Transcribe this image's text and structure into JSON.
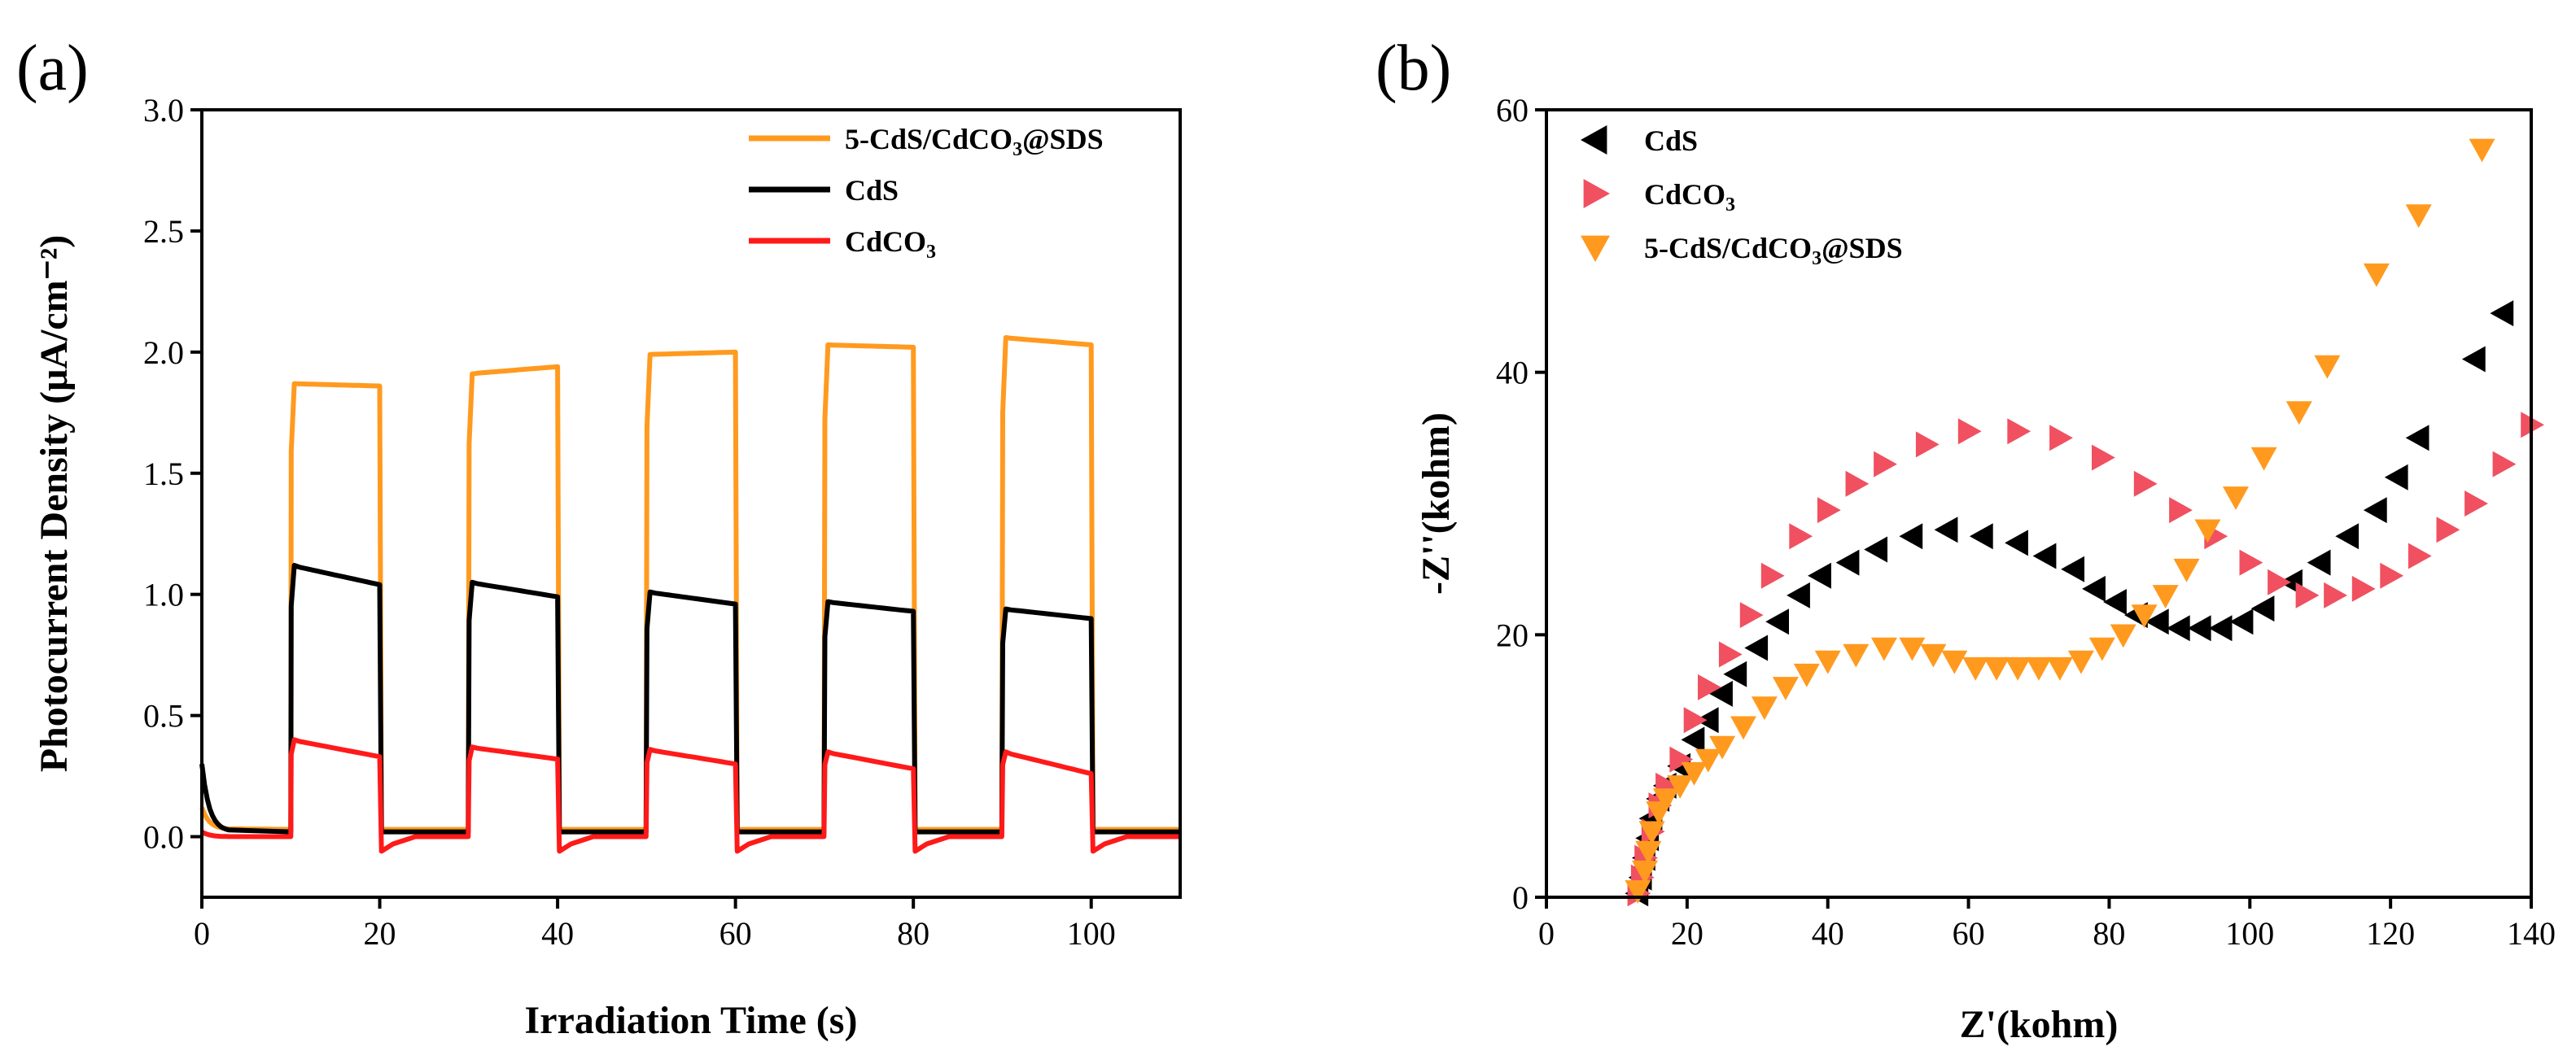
{
  "chart_data": [
    {
      "panel": "(a)",
      "type": "line",
      "title": "",
      "xlabel": "Irradiation Time (s)",
      "ylabel": "Photocurrent Density (μA/cm⁻²)",
      "xlim": [
        0,
        110
      ],
      "ylim": [
        -0.25,
        3.0
      ],
      "xticks": [
        0,
        20,
        40,
        60,
        80,
        100
      ],
      "xtick_labels": [
        "0",
        "20",
        "40",
        "60",
        "80",
        "100"
      ],
      "yticks": [
        0.0,
        0.5,
        1.0,
        1.5,
        2.0,
        2.5,
        3.0
      ],
      "ytick_labels": [
        "0.0",
        "0.5",
        "1.0",
        "1.5",
        "2.0",
        "2.5",
        "3.0"
      ],
      "light_on_intervals": [
        [
          10,
          20
        ],
        [
          30,
          40
        ],
        [
          50,
          60
        ],
        [
          70,
          80
        ],
        [
          90,
          100
        ]
      ],
      "legend_position": "top-right",
      "series": [
        {
          "name": "5-CdS/CdCO3@SDS",
          "label_main": "5-CdS/CdCO",
          "label_sub": "3",
          "label_tail": "@SDS",
          "color": "#ff9a1f",
          "baseline": 0.03,
          "start": 0.12,
          "on_peaks": [
            1.87,
            1.91,
            1.99,
            2.03,
            2.06
          ],
          "on_ends": [
            1.86,
            1.94,
            2.0,
            2.02,
            2.03
          ]
        },
        {
          "name": "CdS",
          "label_main": "CdS",
          "label_sub": "",
          "label_tail": "",
          "color": "#000000",
          "baseline": 0.02,
          "start": 0.3,
          "on_peaks": [
            1.12,
            1.05,
            1.01,
            0.97,
            0.94
          ],
          "on_ends": [
            1.04,
            0.99,
            0.96,
            0.93,
            0.9
          ]
        },
        {
          "name": "CdCO3",
          "label_main": "CdCO",
          "label_sub": "3",
          "label_tail": "",
          "color": "#ff1a1a",
          "baseline": 0.0,
          "start": 0.02,
          "on_peaks": [
            0.4,
            0.37,
            0.36,
            0.35,
            0.35
          ],
          "on_ends": [
            0.33,
            0.32,
            0.3,
            0.28,
            0.26
          ],
          "off_dip": -0.06
        }
      ]
    },
    {
      "panel": "(b)",
      "type": "scatter",
      "title": "",
      "xlabel": "Z'(kohm)",
      "ylabel": "-Z''(kohm)",
      "xlim": [
        0,
        140
      ],
      "ylim": [
        0,
        60
      ],
      "xticks": [
        0,
        20,
        40,
        60,
        80,
        100,
        120,
        140
      ],
      "xtick_labels": [
        "0",
        "20",
        "40",
        "60",
        "80",
        "100",
        "120",
        "140"
      ],
      "yticks": [
        0,
        20,
        40,
        60
      ],
      "ytick_labels": [
        "0",
        "20",
        "40",
        "60"
      ],
      "legend_position": "top-left",
      "series": [
        {
          "name": "CdS",
          "label_main": "CdS",
          "label_sub": "",
          "label_tail": "",
          "marker": "triangle-left",
          "color": "#000000",
          "points": [
            [
              13,
              0.3
            ],
            [
              13.5,
              1.5
            ],
            [
              14,
              3
            ],
            [
              14.5,
              4.5
            ],
            [
              15,
              6
            ],
            [
              16,
              7.5
            ],
            [
              17,
              8.5
            ],
            [
              19,
              10
            ],
            [
              21,
              12
            ],
            [
              23,
              13.5
            ],
            [
              25,
              15.5
            ],
            [
              27,
              17
            ],
            [
              30,
              19
            ],
            [
              33,
              21
            ],
            [
              36,
              23
            ],
            [
              39,
              24.5
            ],
            [
              43,
              25.5
            ],
            [
              47,
              26.5
            ],
            [
              52,
              27.5
            ],
            [
              57,
              28
            ],
            [
              62,
              27.5
            ],
            [
              67,
              27
            ],
            [
              71,
              26
            ],
            [
              75,
              25
            ],
            [
              78,
              23.5
            ],
            [
              81,
              22.5
            ],
            [
              84,
              21.5
            ],
            [
              87,
              21
            ],
            [
              90,
              20.5
            ],
            [
              93,
              20.5
            ],
            [
              96,
              20.5
            ],
            [
              99,
              21
            ],
            [
              102,
              22
            ],
            [
              106,
              24
            ],
            [
              110,
              25.5
            ],
            [
              114,
              27.5
            ],
            [
              118,
              29.5
            ],
            [
              121,
              32
            ],
            [
              124,
              35
            ],
            [
              132,
              41
            ],
            [
              136,
              44.5
            ]
          ]
        },
        {
          "name": "CdCO3",
          "label_main": "CdCO",
          "label_sub": "3",
          "label_tail": "",
          "marker": "triangle-right",
          "color": "#f05060",
          "points": [
            [
              13,
              0.3
            ],
            [
              13.5,
              1.5
            ],
            [
              14,
              3
            ],
            [
              15,
              5
            ],
            [
              16,
              7
            ],
            [
              17,
              8.5
            ],
            [
              19,
              10.5
            ],
            [
              21,
              13.5
            ],
            [
              23,
              16
            ],
            [
              26,
              18.5
            ],
            [
              29,
              21.5
            ],
            [
              32,
              24.5
            ],
            [
              36,
              27.5
            ],
            [
              40,
              29.5
            ],
            [
              44,
              31.5
            ],
            [
              48,
              33
            ],
            [
              54,
              34.5
            ],
            [
              60,
              35.5
            ],
            [
              67,
              35.5
            ],
            [
              73,
              35
            ],
            [
              79,
              33.5
            ],
            [
              85,
              31.5
            ],
            [
              90,
              29.5
            ],
            [
              95,
              27.5
            ],
            [
              100,
              25.5
            ],
            [
              104,
              24
            ],
            [
              108,
              23
            ],
            [
              112,
              23
            ],
            [
              116,
              23.5
            ],
            [
              120,
              24.5
            ],
            [
              124,
              26
            ],
            [
              128,
              28
            ],
            [
              132,
              30
            ],
            [
              136,
              33
            ],
            [
              140,
              36
            ]
          ]
        },
        {
          "name": "5-CdS/CdCO3@SDS",
          "label_main": "5-CdS/CdCO",
          "label_sub": "3",
          "label_tail": "@SDS",
          "marker": "triangle-down",
          "color": "#ff9a1f",
          "points": [
            [
              13,
              0.5
            ],
            [
              14,
              2
            ],
            [
              14.5,
              3.5
            ],
            [
              15,
              5
            ],
            [
              16,
              6.5
            ],
            [
              17,
              7.5
            ],
            [
              19,
              8.5
            ],
            [
              21,
              9.5
            ],
            [
              23,
              10.5
            ],
            [
              25,
              11.5
            ],
            [
              28,
              13
            ],
            [
              31,
              14.5
            ],
            [
              34,
              16
            ],
            [
              37,
              17
            ],
            [
              40,
              18
            ],
            [
              44,
              18.5
            ],
            [
              48,
              19
            ],
            [
              52,
              19
            ],
            [
              55,
              18.5
            ],
            [
              58,
              18
            ],
            [
              61,
              17.5
            ],
            [
              64,
              17.5
            ],
            [
              67,
              17.5
            ],
            [
              70,
              17.5
            ],
            [
              73,
              17.5
            ],
            [
              76,
              18
            ],
            [
              79,
              19
            ],
            [
              82,
              20
            ],
            [
              85,
              21.5
            ],
            [
              88,
              23
            ],
            [
              91,
              25
            ],
            [
              94,
              28
            ],
            [
              98,
              30.5
            ],
            [
              102,
              33.5
            ],
            [
              107,
              37
            ],
            [
              111,
              40.5
            ],
            [
              118,
              47.5
            ],
            [
              124,
              52
            ],
            [
              133,
              57
            ]
          ]
        }
      ]
    }
  ]
}
